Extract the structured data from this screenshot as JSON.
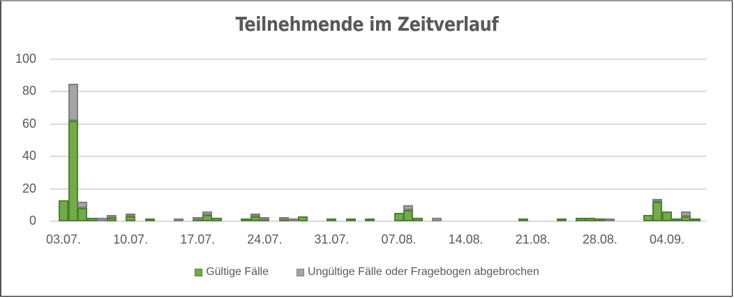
{
  "chart_data": {
    "type": "bar",
    "stacked": true,
    "title": "Teilnehmende im Zeitverlauf",
    "xlabel": "",
    "ylabel": "",
    "ylim": [
      0,
      100
    ],
    "yticks": [
      0,
      20,
      40,
      60,
      80,
      100
    ],
    "grid": true,
    "legend_position": "bottom",
    "xtick_labels": [
      "03.07.",
      "10.07.",
      "17.07.",
      "24.07.",
      "31.07.",
      "07.08.",
      "14.08.",
      "21.08.",
      "28.08.",
      "04.09."
    ],
    "categories": [
      "03.07.",
      "04.07.",
      "05.07.",
      "06.07.",
      "07.07.",
      "08.07.",
      "09.07.",
      "10.07.",
      "11.07.",
      "12.07.",
      "13.07.",
      "14.07.",
      "15.07.",
      "16.07.",
      "17.07.",
      "18.07.",
      "19.07.",
      "20.07.",
      "21.07.",
      "22.07.",
      "23.07.",
      "24.07.",
      "25.07.",
      "26.07.",
      "27.07.",
      "28.07.",
      "29.07.",
      "30.07.",
      "31.07.",
      "01.08.",
      "02.08.",
      "03.08.",
      "04.08.",
      "05.08.",
      "06.08.",
      "07.08.",
      "08.08.",
      "09.08.",
      "10.08.",
      "11.08.",
      "12.08.",
      "13.08.",
      "14.08.",
      "15.08.",
      "16.08.",
      "17.08.",
      "18.08.",
      "19.08.",
      "20.08.",
      "21.08.",
      "22.08.",
      "23.08.",
      "24.08.",
      "25.08.",
      "26.08.",
      "27.08.",
      "28.08.",
      "29.08.",
      "30.08.",
      "31.08.",
      "01.09.",
      "02.09.",
      "03.09.",
      "04.09.",
      "05.09.",
      "06.09.",
      "07.09."
    ],
    "series": [
      {
        "name": "Gültige Fälle",
        "color": "#70ad47",
        "values": [
          13,
          62,
          8,
          2,
          0,
          2,
          0,
          3,
          0,
          1,
          0,
          0,
          0,
          0,
          1,
          4,
          2,
          0,
          0,
          1,
          3,
          1,
          0,
          1,
          0,
          3,
          0,
          0,
          1,
          0,
          1,
          0,
          1,
          0,
          0,
          5,
          7,
          2,
          0,
          0,
          0,
          0,
          0,
          0,
          0,
          0,
          0,
          0,
          1,
          0,
          0,
          0,
          1,
          0,
          2,
          2,
          1,
          0,
          0,
          0,
          0,
          4,
          12,
          6,
          1,
          3,
          1
        ]
      },
      {
        "name": "Ungültige Fälle oder Fragebogen abgebrochen",
        "color": "#a5a5a5",
        "values": [
          0,
          23,
          4,
          0,
          2,
          1,
          0,
          1,
          0,
          0,
          0,
          0,
          1,
          0,
          1,
          2,
          0,
          0,
          0,
          0,
          1,
          1,
          0,
          1,
          1,
          0,
          0,
          0,
          0,
          0,
          0,
          0,
          0,
          0,
          0,
          0,
          3,
          0,
          0,
          2,
          0,
          0,
          0,
          0,
          0,
          0,
          0,
          0,
          0,
          0,
          0,
          0,
          0,
          0,
          0,
          0,
          0,
          1,
          0,
          0,
          0,
          0,
          1,
          0,
          0,
          3,
          0
        ]
      }
    ]
  }
}
